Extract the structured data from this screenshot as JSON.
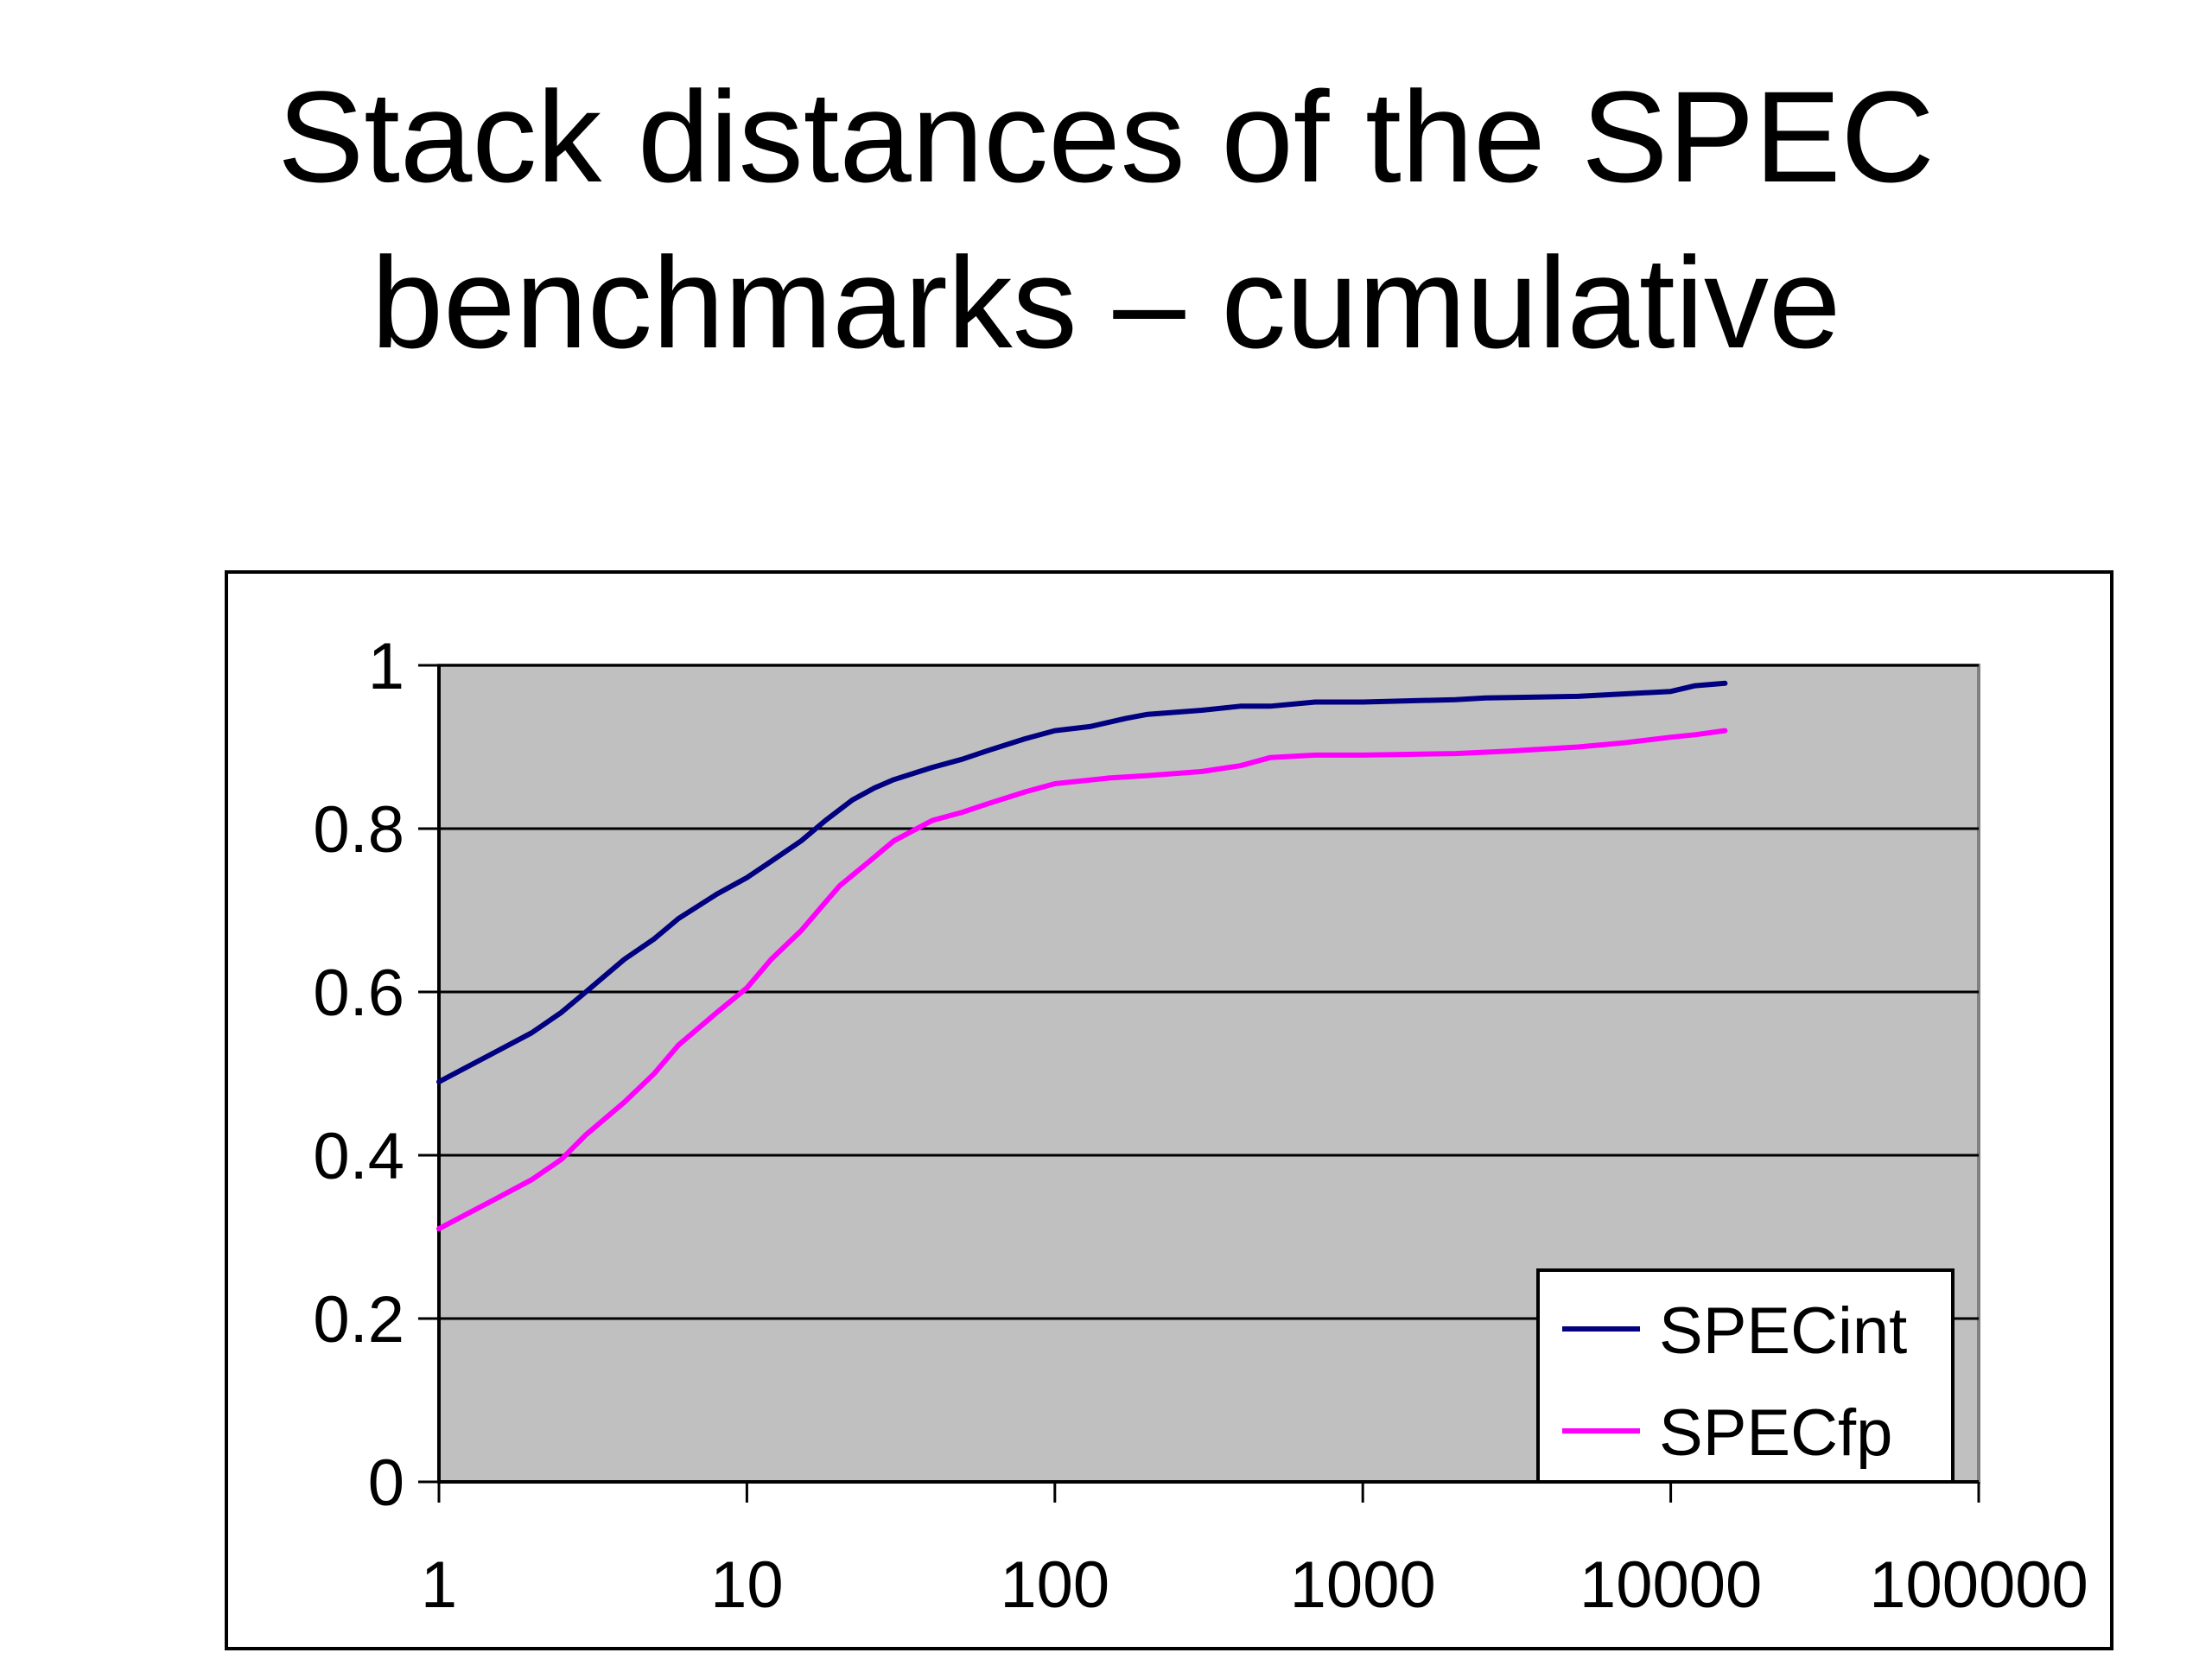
{
  "title_lines": [
    "Stack distances of the SPEC",
    "benchmarks – cumulative"
  ],
  "chart_data": {
    "type": "line",
    "title": "Stack distances of the SPEC benchmarks – cumulative",
    "xlabel": "",
    "ylabel": "",
    "x_scale": "log",
    "xlim": [
      1,
      100000
    ],
    "ylim": [
      0,
      1
    ],
    "x_ticks": [
      1,
      10,
      100,
      1000,
      10000,
      100000
    ],
    "x_tick_labels": [
      "1",
      "10",
      "100",
      "1000",
      "10000",
      "100000"
    ],
    "y_ticks": [
      0,
      0.2,
      0.4,
      0.6,
      0.8,
      1
    ],
    "y_tick_labels": [
      "0",
      "0.2",
      "0.4",
      "0.6",
      "0.8",
      "1"
    ],
    "grid": "horizontal",
    "plot_background": "#c0c0c0",
    "legend_position": "bottom-right",
    "series": [
      {
        "name": "SPECint",
        "color": "#000080",
        "x": [
          1,
          1.5,
          2,
          2.5,
          3,
          4,
          5,
          6,
          8,
          10,
          12,
          15,
          18,
          22,
          26,
          30,
          40,
          50,
          60,
          80,
          100,
          130,
          170,
          200,
          300,
          400,
          500,
          700,
          1000,
          2000,
          2500,
          5000,
          7000,
          10000,
          12000,
          15000
        ],
        "y": [
          0.49,
          0.525,
          0.55,
          0.575,
          0.6,
          0.64,
          0.665,
          0.69,
          0.72,
          0.74,
          0.76,
          0.785,
          0.81,
          0.835,
          0.85,
          0.86,
          0.875,
          0.885,
          0.895,
          0.91,
          0.92,
          0.925,
          0.935,
          0.94,
          0.945,
          0.95,
          0.95,
          0.955,
          0.955,
          0.958,
          0.96,
          0.962,
          0.965,
          0.968,
          0.975,
          0.978
        ]
      },
      {
        "name": "SPECfp",
        "color": "#ff00ff",
        "x": [
          1,
          1.5,
          2,
          2.5,
          3,
          4,
          5,
          6,
          8,
          10,
          12,
          15,
          18,
          20,
          25,
          30,
          40,
          50,
          60,
          80,
          100,
          150,
          200,
          300,
          400,
          500,
          700,
          1000,
          2000,
          3000,
          5000,
          7000,
          10000,
          12000,
          15000
        ],
        "y": [
          0.31,
          0.345,
          0.37,
          0.395,
          0.425,
          0.465,
          0.5,
          0.535,
          0.575,
          0.605,
          0.64,
          0.675,
          0.71,
          0.73,
          0.76,
          0.785,
          0.81,
          0.82,
          0.83,
          0.845,
          0.855,
          0.862,
          0.865,
          0.87,
          0.877,
          0.887,
          0.89,
          0.89,
          0.892,
          0.895,
          0.9,
          0.905,
          0.912,
          0.915,
          0.92
        ]
      }
    ]
  }
}
